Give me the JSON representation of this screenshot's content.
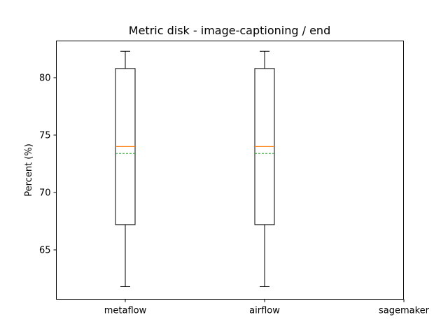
{
  "chart_data": {
    "type": "box",
    "title": "Metric disk - image-captioning / end",
    "xlabel": "",
    "ylabel": "Percent (%)",
    "ylim": [
      60.7,
      83.2
    ],
    "yticks": [
      65,
      70,
      75,
      80
    ],
    "categories": [
      "metaflow",
      "airflow",
      "sagemaker"
    ],
    "boxes": [
      {
        "category": "metaflow",
        "whisker_low": 61.8,
        "q1": 67.2,
        "median": 74.0,
        "mean": 73.4,
        "q3": 80.8,
        "whisker_high": 82.3
      },
      {
        "category": "airflow",
        "whisker_low": 61.8,
        "q1": 67.2,
        "median": 74.0,
        "mean": 73.4,
        "q3": 80.8,
        "whisker_high": 82.3
      },
      null
    ],
    "grid": false,
    "colors": {
      "median": "#ff7f0e",
      "mean": "#2ca02c",
      "box": "#000000"
    }
  }
}
